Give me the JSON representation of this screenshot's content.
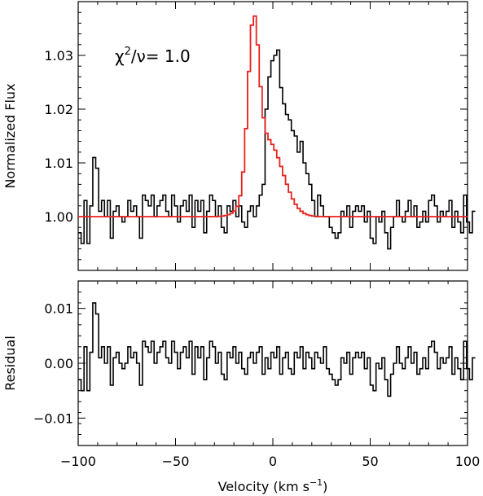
{
  "chart_data": [
    {
      "type": "line",
      "panel": "top",
      "ylabel": "Normalized Flux",
      "annotation": {
        "prefix": "χ",
        "sup": "2",
        "mid": "/ν= ",
        "value": "1.0"
      },
      "xlim": [
        -100,
        100
      ],
      "ylim": [
        0.99,
        1.04
      ],
      "x_ticks": [
        -100,
        -50,
        0,
        50,
        100
      ],
      "y_ticks": [
        1.0,
        1.01,
        1.02,
        1.03
      ],
      "y_tick_labels": [
        "1.00",
        "1.01",
        "1.02",
        "1.03"
      ],
      "series": [
        {
          "kind": "observed-histogram",
          "color": "#000000",
          "x_start": -100,
          "x_step": 1.5,
          "values": [
            0.997,
            0.995,
            1.003,
            0.995,
            1.002,
            1.011,
            1.009,
            1.001,
            1.003,
            1.0,
            1.003,
            0.996,
            1.001,
            1.002,
            1.0,
            0.999,
            1.0,
            1.003,
            1.001,
            1.002,
            1.0,
            0.996,
            1.004,
            1.003,
            1.002,
            1.004,
            1.0,
            1.002,
            1.003,
            1.004,
            1.001,
            1.0,
            1.004,
            1.002,
            0.999,
            1.002,
            1.003,
            1.001,
            1.004,
            0.998,
            1.003,
            1.001,
            1.003,
            0.997,
            1.001,
            1.004,
            1.003,
            1.0,
            1.002,
            0.998,
            0.997,
            1.002,
            1.001,
            1.003,
            1.0,
            1.002,
            0.999,
            0.998,
            1.001,
            1.002,
            1.0,
            1.002,
            1.004,
            1.006,
            1.02,
            1.026,
            1.029,
            1.03,
            1.031,
            1.024,
            1.021,
            1.019,
            1.018,
            1.016,
            1.015,
            1.012,
            1.014,
            1.01,
            1.008,
            1.006,
            1.003,
            1.0,
            1.004,
            1.002,
            1.0,
            1.0,
            0.998,
            0.997,
            0.996,
            0.997,
            1.001,
            1.0,
            1.002,
            0.998,
            1.001,
            1.002,
            1.001,
            1.002,
            0.999,
            1.001,
            0.996,
            0.995,
            1.0,
            0.999,
            1.001,
            0.997,
            0.994,
            0.998,
            1.0,
            1.003,
            1.0,
            0.999,
            1.001,
            1.003,
            1.0,
            1.002,
            0.998,
            0.999,
            1.001,
            0.999,
            1.003,
            1.004,
            1.002,
            0.999,
            1.001,
            1.0,
            1.001,
            1.003,
            0.998,
            1.001,
            0.999,
            0.997,
            1.004,
            0.999,
            0.997,
            1.001
          ]
        },
        {
          "kind": "gaussian-fit",
          "color": "#e8211d",
          "baseline": 1.0,
          "components": [
            {
              "amp": 0.029,
              "center": -10.0,
              "sigma": 2.8
            },
            {
              "amp": 0.014,
              "center": -2.5,
              "sigma": 7.5
            }
          ]
        }
      ]
    },
    {
      "type": "line",
      "panel": "bottom",
      "xlabel_main": "Velocity (km s",
      "xlabel_sup": "−1",
      "xlabel_end": ")",
      "ylabel": "Residual",
      "xlim": [
        -100,
        100
      ],
      "ylim": [
        -0.015,
        0.015
      ],
      "x_ticks": [
        -100,
        -50,
        0,
        50,
        100
      ],
      "x_tick_labels": [
        "−100",
        "−50",
        "0",
        "50",
        "100"
      ],
      "y_ticks": [
        -0.01,
        0.0,
        0.01
      ],
      "y_tick_labels": [
        "−0.01",
        "0.00",
        "0.01"
      ],
      "series": [
        {
          "kind": "residual-histogram",
          "color": "#000000",
          "x_start": -100,
          "x_step": 1.5,
          "values": [
            -0.003,
            -0.005,
            0.003,
            -0.005,
            0.002,
            0.011,
            0.009,
            0.001,
            0.003,
            0.0,
            0.003,
            -0.004,
            0.001,
            0.002,
            0.0,
            -0.001,
            0.0,
            0.003,
            0.001,
            0.002,
            0.0,
            -0.004,
            0.004,
            0.003,
            0.002,
            0.004,
            0.0,
            0.002,
            0.003,
            0.004,
            0.001,
            0.0,
            0.004,
            0.002,
            -0.001,
            0.002,
            0.003,
            0.001,
            0.004,
            -0.002,
            0.003,
            0.001,
            0.003,
            -0.003,
            0.001,
            0.004,
            0.003,
            0.0,
            0.002,
            -0.002,
            -0.003,
            0.002,
            0.001,
            0.003,
            0.0,
            0.002,
            -0.001,
            -0.002,
            0.001,
            0.002,
            0.0,
            0.002,
            0.003,
            -0.002,
            0.001,
            -0.001,
            0.002,
            0.001,
            0.003,
            -0.002,
            0.001,
            0.002,
            -0.001,
            -0.002,
            0.002,
            0.001,
            0.003,
            -0.001,
            0.002,
            0.001,
            -0.001,
            0.002,
            0.001,
            0.0,
            0.003,
            -0.001,
            -0.002,
            -0.003,
            -0.004,
            -0.003,
            0.001,
            0.0,
            0.002,
            -0.002,
            0.001,
            0.002,
            0.001,
            0.002,
            -0.001,
            0.001,
            -0.004,
            -0.005,
            0.0,
            -0.001,
            0.001,
            -0.003,
            -0.006,
            -0.002,
            0.0,
            0.003,
            0.0,
            -0.001,
            0.001,
            0.003,
            0.0,
            0.002,
            -0.002,
            -0.001,
            0.001,
            -0.001,
            0.003,
            0.004,
            0.002,
            -0.001,
            0.001,
            0.0,
            0.001,
            0.003,
            -0.002,
            0.001,
            -0.001,
            -0.003,
            0.004,
            -0.001,
            -0.003,
            0.001
          ]
        }
      ]
    }
  ]
}
